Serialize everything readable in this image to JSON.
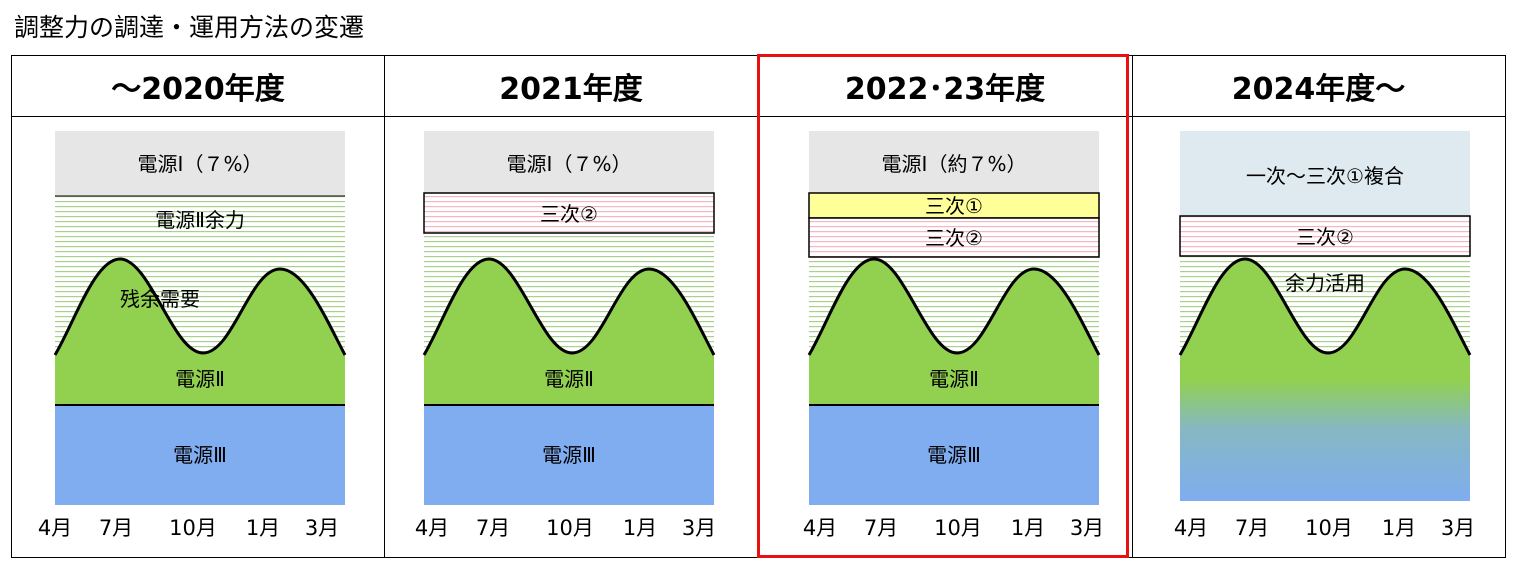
{
  "title": "調整力の調達・運用方法の変遷",
  "highlight_color": "#e81010",
  "colors": {
    "grey": "#e6e6e6",
    "green_stripe": "#a9d08e",
    "pink_stripe": "#f4b6c2",
    "yellow": "#ffff99",
    "green_fill": "#92d050",
    "blue_fill": "#7fadf0",
    "light_blue": "#deeaf0"
  },
  "panels": [
    {
      "header": "～2020年度",
      "labels": {
        "top": "電源Ⅰ（７%）",
        "upper": "電源Ⅱ余力",
        "residual": "残余需要",
        "green": "電源Ⅱ",
        "blue": "電源Ⅲ"
      },
      "months": [
        "4月",
        "7月",
        "10月",
        "1月",
        "3月"
      ]
    },
    {
      "header": "2021年度",
      "labels": {
        "top": "電源Ⅰ（７%）",
        "band1": "三次②",
        "green": "電源Ⅱ",
        "blue": "電源Ⅲ"
      },
      "months": [
        "4月",
        "7月",
        "10月",
        "1月",
        "3月"
      ]
    },
    {
      "header": "2022･23年度",
      "labels": {
        "top": "電源Ⅰ（約７%）",
        "band_yellow": "三次①",
        "band2": "三次②",
        "green": "電源Ⅱ",
        "blue": "電源Ⅲ"
      },
      "months": [
        "4月",
        "7月",
        "10月",
        "1月",
        "3月"
      ]
    },
    {
      "header": "2024年度～",
      "labels": {
        "top": "一次～三次①複合",
        "band1": "三次②",
        "upper": "余力活用"
      },
      "months": [
        "4月",
        "7月",
        "10月",
        "1月",
        "3月"
      ]
    }
  ]
}
